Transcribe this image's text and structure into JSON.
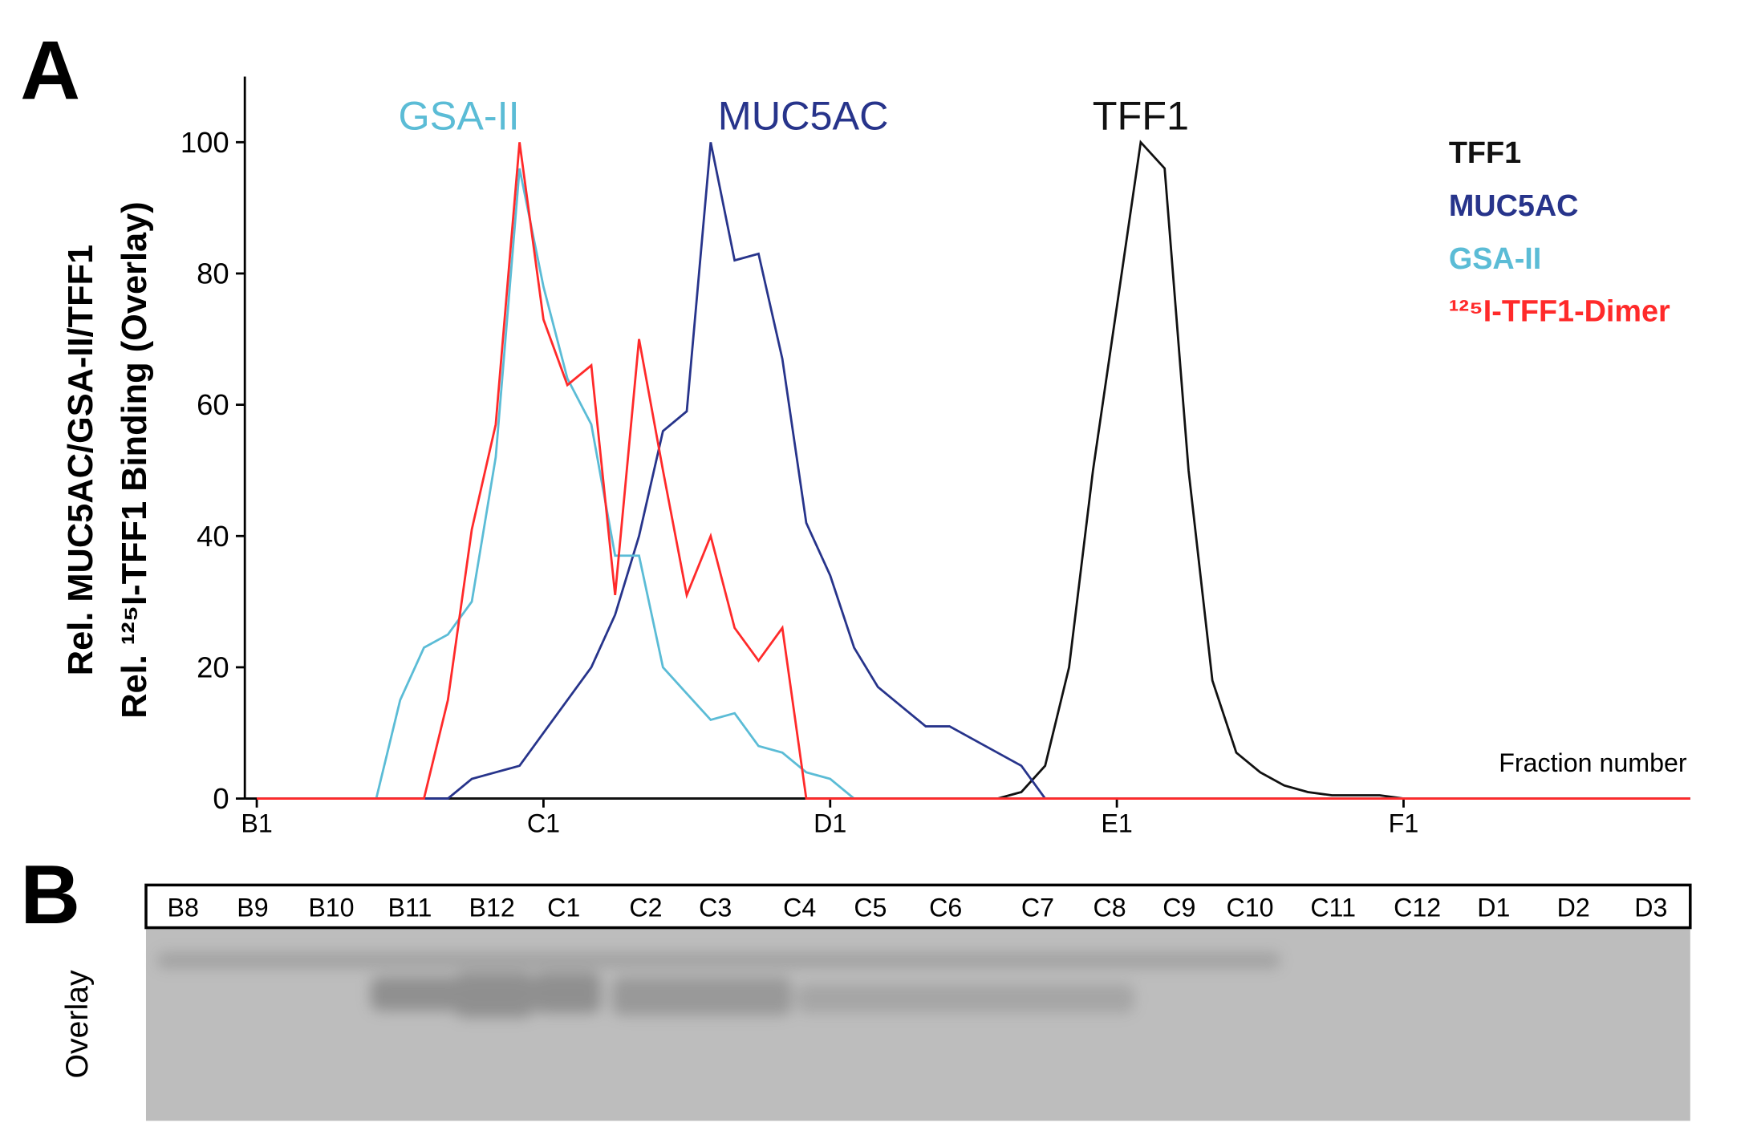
{
  "panel_labels": [
    "A",
    "B"
  ],
  "chart_data": {
    "type": "line",
    "ylabel": [
      "Rel. MUC5AC/GSA-II/TFF1",
      "Rel. ¹²⁵I-TFF1 Binding (Overlay)"
    ],
    "xlabel": "Fraction number",
    "xlim": [
      0.5,
      61
    ],
    "xticks": [
      {
        "value": 1,
        "label": "B1"
      },
      {
        "value": 13,
        "label": "C1"
      },
      {
        "value": 25,
        "label": "D1"
      },
      {
        "value": 37,
        "label": "E1"
      },
      {
        "value": 49,
        "label": "F1"
      }
    ],
    "ylim": [
      0,
      110
    ],
    "yticks": [
      0,
      20,
      40,
      60,
      80,
      100
    ],
    "annotations": [
      {
        "text": "GSA-II",
        "color": "#5bbcd6",
        "x": 12,
        "y": 104
      },
      {
        "text": "MUC5AC",
        "color": "#27348b",
        "x": 20.3,
        "y": 104
      },
      {
        "text": "TFF1",
        "color": "#111111",
        "x": 38,
        "y": 104
      }
    ],
    "legend": "upper right",
    "series": [
      {
        "name": "TFF1",
        "color": "#111111",
        "x": [
          1,
          32,
          33,
          34,
          35,
          36,
          37,
          38,
          39,
          40,
          41,
          42,
          43,
          44,
          45,
          46,
          47,
          48,
          49,
          61
        ],
        "values": [
          0,
          0,
          1,
          5,
          20,
          50,
          75,
          100,
          96,
          50,
          18,
          7,
          4,
          2,
          1,
          0.5,
          0.5,
          0.5,
          0,
          0
        ]
      },
      {
        "name": "MUC5AC",
        "color": "#27348b",
        "x": [
          1,
          9,
          10,
          11,
          12,
          13,
          14,
          15,
          16,
          17,
          18,
          19,
          20,
          21,
          22,
          23,
          24,
          25,
          26,
          27,
          28,
          29,
          30,
          31,
          32,
          33,
          34,
          61
        ],
        "values": [
          0,
          0,
          3,
          4,
          5,
          10,
          15,
          20,
          28,
          40,
          56,
          59,
          100,
          82,
          83,
          67,
          42,
          34,
          23,
          17,
          14,
          11,
          11,
          9,
          7,
          5,
          0,
          0
        ]
      },
      {
        "name": "GSA-II",
        "color": "#5bbcd6",
        "x": [
          1,
          6,
          7,
          8,
          9,
          10,
          11,
          12,
          13,
          14,
          15,
          16,
          17,
          18,
          19,
          20,
          21,
          22,
          23,
          24,
          25,
          26,
          61
        ],
        "values": [
          0,
          0,
          15,
          23,
          25,
          30,
          52,
          96,
          78,
          64,
          57,
          37,
          37,
          20,
          16,
          12,
          13,
          8,
          7,
          4,
          3,
          0,
          0
        ]
      },
      {
        "name": "¹²⁵I-TFF1-Dimer",
        "color": "#ff2a2a",
        "x": [
          1,
          8,
          9,
          10,
          11,
          12,
          13,
          14,
          15,
          16,
          17,
          18,
          19,
          20,
          21,
          22,
          23,
          24,
          61
        ],
        "values": [
          0,
          0,
          15,
          41,
          57,
          100,
          73,
          63,
          66,
          31,
          70,
          50,
          31,
          40,
          26,
          21,
          26,
          0,
          0
        ]
      }
    ]
  },
  "gel": {
    "ylabel": "Overlay",
    "lanes": [
      "B8",
      "B9",
      "B10",
      "B11",
      "B12",
      "C1",
      "C2",
      "C3",
      "C4",
      "C5",
      "C6",
      "C7",
      "C8",
      "C9",
      "C10",
      "C11",
      "C12",
      "D1",
      "D2",
      "D3"
    ]
  }
}
